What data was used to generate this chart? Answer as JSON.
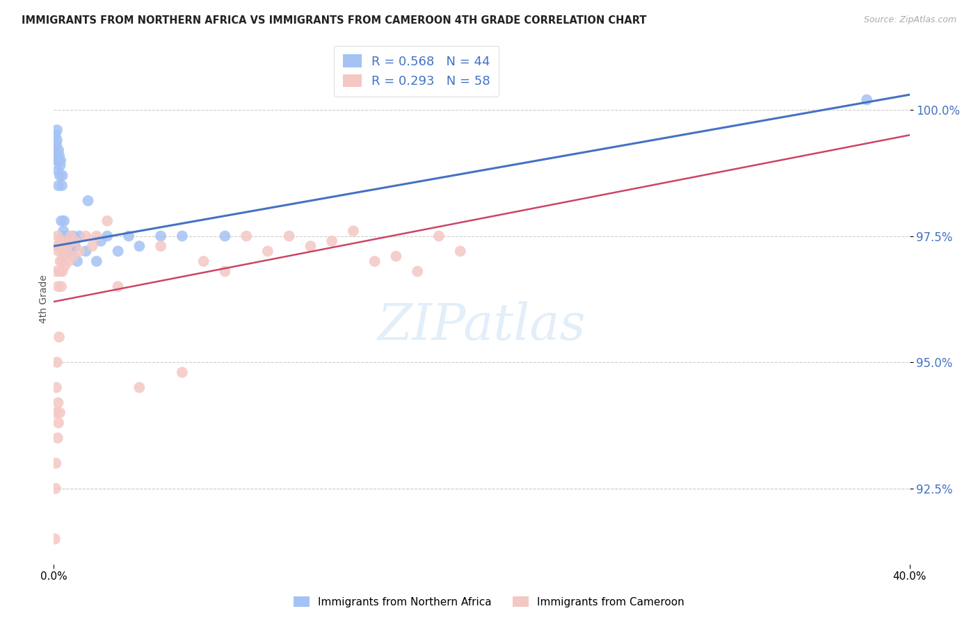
{
  "title": "IMMIGRANTS FROM NORTHERN AFRICA VS IMMIGRANTS FROM CAMEROON 4TH GRADE CORRELATION CHART",
  "source": "Source: ZipAtlas.com",
  "ylabel": "4th Grade",
  "ylabel_tick_vals": [
    92.5,
    95.0,
    97.5,
    100.0
  ],
  "xlim": [
    0.0,
    40.0
  ],
  "ylim": [
    91.0,
    101.5
  ],
  "r_blue": 0.568,
  "n_blue": 44,
  "r_pink": 0.293,
  "n_pink": 58,
  "legend_label_blue": "Immigrants from Northern Africa",
  "legend_label_pink": "Immigrants from Cameroon",
  "blue_color": "#a4c2f4",
  "pink_color": "#f4c7c3",
  "blue_line_color": "#4472c4",
  "pink_line_color": "#cc4466",
  "background_color": "#ffffff",
  "grid_color": "#cccccc",
  "title_color": "#222222",
  "scatter_blue_x": [
    0.05,
    0.08,
    0.1,
    0.12,
    0.13,
    0.15,
    0.15,
    0.18,
    0.2,
    0.22,
    0.22,
    0.25,
    0.28,
    0.3,
    0.32,
    0.35,
    0.38,
    0.4,
    0.42,
    0.45,
    0.48,
    0.5,
    0.52,
    0.55,
    0.6,
    0.65,
    0.7,
    0.8,
    0.9,
    1.0,
    1.1,
    1.2,
    1.5,
    1.6,
    2.0,
    2.2,
    2.5,
    3.0,
    3.5,
    4.0,
    5.0,
    6.0,
    8.0,
    38.0
  ],
  "scatter_blue_y": [
    99.2,
    99.5,
    99.0,
    99.3,
    99.1,
    99.4,
    99.6,
    98.8,
    99.0,
    98.5,
    99.2,
    99.1,
    98.7,
    98.9,
    99.0,
    97.8,
    98.5,
    98.7,
    97.5,
    97.6,
    97.8,
    97.5,
    97.4,
    97.5,
    97.3,
    97.5,
    97.4,
    97.2,
    97.5,
    97.3,
    97.0,
    97.5,
    97.2,
    98.2,
    97.0,
    97.4,
    97.5,
    97.2,
    97.5,
    97.3,
    97.5,
    97.5,
    97.5,
    100.2
  ],
  "scatter_pink_x": [
    0.05,
    0.08,
    0.1,
    0.1,
    0.12,
    0.12,
    0.15,
    0.15,
    0.18,
    0.18,
    0.2,
    0.2,
    0.22,
    0.22,
    0.25,
    0.25,
    0.28,
    0.28,
    0.3,
    0.3,
    0.32,
    0.35,
    0.38,
    0.4,
    0.42,
    0.45,
    0.48,
    0.5,
    0.52,
    0.55,
    0.6,
    0.65,
    0.7,
    0.8,
    0.9,
    1.0,
    1.2,
    1.5,
    1.8,
    2.0,
    2.5,
    3.0,
    4.0,
    5.0,
    6.0,
    7.0,
    8.0,
    9.0,
    10.0,
    11.0,
    12.0,
    13.0,
    14.0,
    15.0,
    16.0,
    17.0,
    18.0,
    19.0
  ],
  "scatter_pink_y": [
    91.5,
    92.5,
    93.0,
    94.0,
    94.5,
    96.8,
    95.0,
    97.3,
    93.5,
    97.5,
    94.2,
    96.5,
    93.8,
    97.2,
    95.5,
    97.3,
    94.0,
    96.8,
    97.0,
    97.4,
    97.3,
    96.5,
    97.0,
    96.8,
    97.2,
    97.1,
    97.3,
    96.9,
    97.2,
    97.4,
    97.2,
    97.3,
    97.0,
    97.5,
    97.1,
    97.4,
    97.2,
    97.5,
    97.3,
    97.5,
    97.8,
    96.5,
    94.5,
    97.3,
    94.8,
    97.0,
    96.8,
    97.5,
    97.2,
    97.5,
    97.3,
    97.4,
    97.6,
    97.0,
    97.1,
    96.8,
    97.5,
    97.2
  ],
  "blue_line_x0": 0.0,
  "blue_line_y0": 97.3,
  "blue_line_x1": 40.0,
  "blue_line_y1": 100.3,
  "pink_line_x0": 0.0,
  "pink_line_y0": 96.2,
  "pink_line_x1": 40.0,
  "pink_line_y1": 99.5
}
